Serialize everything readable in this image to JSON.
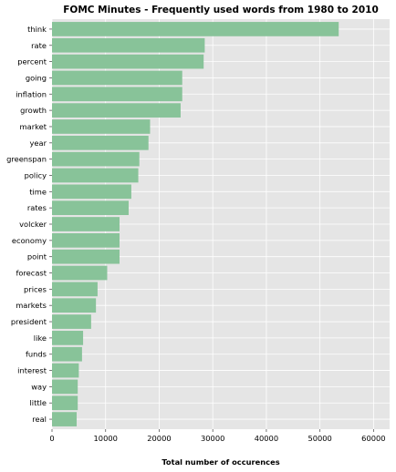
{
  "chart_data": {
    "type": "bar",
    "orientation": "horizontal",
    "title": "FOMC Minutes - Frequently used words from 1980 to 2010",
    "xlabel": "Total number of occurences",
    "ylabel": "",
    "xlim": [
      0,
      63000
    ],
    "xticks": [
      0,
      10000,
      20000,
      30000,
      40000,
      50000,
      60000
    ],
    "grid": true,
    "bar_color": "#88c399",
    "background": "#e5e5e5",
    "categories": [
      "think",
      "rate",
      "percent",
      "going",
      "inflation",
      "growth",
      "market",
      "year",
      "greenspan",
      "policy",
      "time",
      "rates",
      "volcker",
      "economy",
      "point",
      "forecast",
      "prices",
      "markets",
      "president",
      "like",
      "funds",
      "interest",
      "way",
      "little",
      "real"
    ],
    "values": [
      53500,
      28500,
      28300,
      24300,
      24300,
      24000,
      18300,
      18000,
      16300,
      16100,
      14800,
      14300,
      12600,
      12600,
      12600,
      10300,
      8500,
      8200,
      7300,
      5800,
      5600,
      5000,
      4800,
      4800,
      4600
    ]
  }
}
